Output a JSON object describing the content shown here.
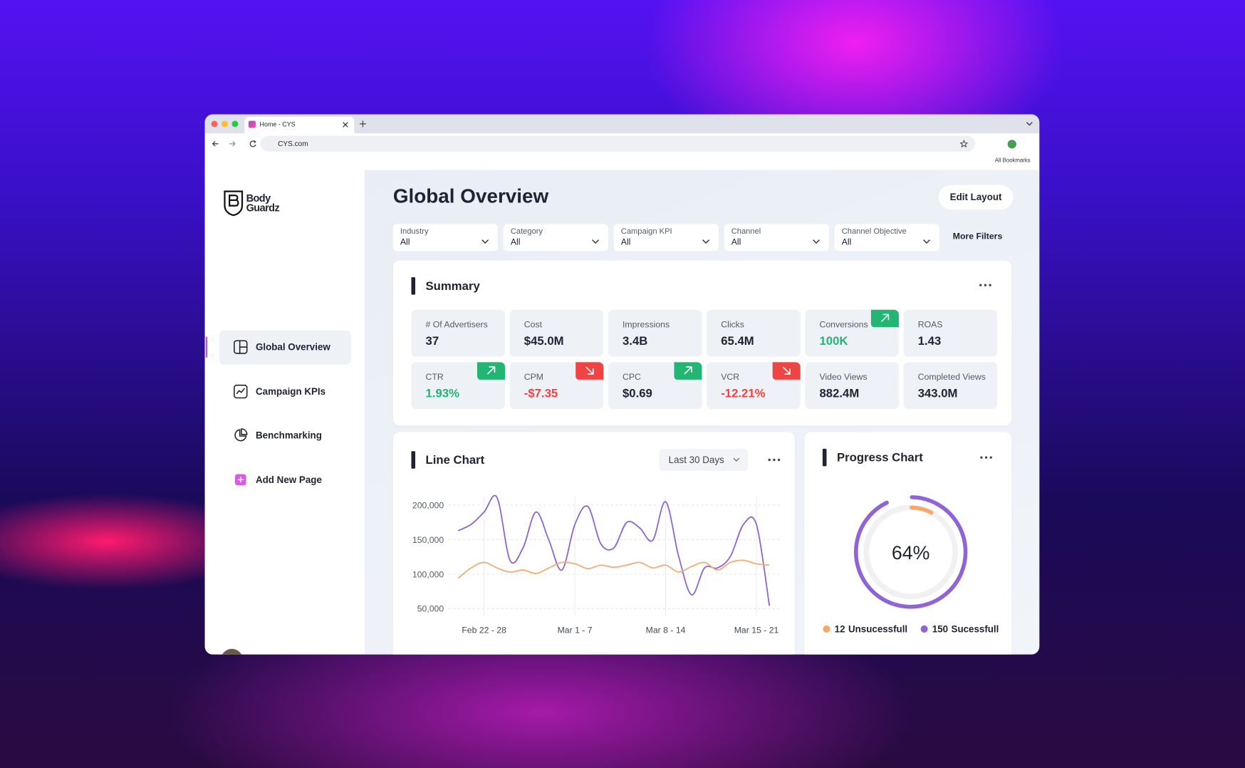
{
  "browser": {
    "tab_title": "Home - CYS",
    "url": "CYS.com",
    "bookmarks": "All Bookmarks"
  },
  "sidebar": {
    "logo": [
      "Body",
      "Guardz"
    ],
    "nav": [
      {
        "label": "Global Overview",
        "active": true
      },
      {
        "label": "Campaign KPIs"
      },
      {
        "label": "Benchmarking"
      },
      {
        "label": "Add New Page"
      }
    ]
  },
  "header": {
    "title": "Global Overview",
    "button": "Edit Layout"
  },
  "filters": [
    {
      "label": "Industry",
      "value": "All"
    },
    {
      "label": "Category",
      "value": "All"
    },
    {
      "label": "Campaign KPI",
      "value": "All"
    },
    {
      "label": "Channel",
      "value": "All"
    },
    {
      "label": "Channel Objective",
      "value": "All"
    }
  ],
  "more_filters": "More Filters",
  "summary": {
    "title": "Summary",
    "metrics": [
      {
        "label": "# Of Advertisers",
        "value": "37"
      },
      {
        "label": "Cost",
        "value": "$45.0M"
      },
      {
        "label": "Impressions",
        "value": "3.4B"
      },
      {
        "label": "Clicks",
        "value": "65.4M"
      },
      {
        "label": "Conversions",
        "value": "100K",
        "trend": "up",
        "value_color": "#22b573"
      },
      {
        "label": "ROAS",
        "value": "1.43"
      },
      {
        "label": "CTR",
        "value": "1.93%",
        "trend": "up",
        "value_color": "#22b573"
      },
      {
        "label": "CPM",
        "value": "-$7.35",
        "trend": "down",
        "value_color": "#ef4444"
      },
      {
        "label": "CPC",
        "value": "$0.69",
        "trend": "up"
      },
      {
        "label": "VCR",
        "value": "-12.21%",
        "trend": "down",
        "value_color": "#ef4444"
      },
      {
        "label": "Video Views",
        "value": "882.4M"
      },
      {
        "label": "Completed Views",
        "value": "343.0M"
      }
    ]
  },
  "chart_data": [
    {
      "type": "line",
      "title": "Line Chart",
      "range": "Last 30 Days",
      "categories": [
        null,
        null,
        "Feb 22 - 28",
        null,
        null,
        null,
        null,
        null,
        null,
        "Mar 1 - 7",
        null,
        null,
        null,
        null,
        null,
        null,
        "Mar 8 - 14",
        null,
        null,
        null,
        null,
        null,
        null,
        "Mar 15 - 21",
        null
      ],
      "series": [
        {
          "color": "#8e62d0",
          "values": [
            163000,
            172000,
            190000,
            211000,
            120000,
            138000,
            190000,
            149000,
            106000,
            172000,
            198000,
            144000,
            138000,
            175000,
            167000,
            149000,
            205000,
            126000,
            70000,
            109000,
            109000,
            126000,
            172000,
            172000,
            54000
          ]
        },
        {
          "color": "#f2ab74",
          "values": [
            94000,
            109000,
            117000,
            109000,
            103000,
            106000,
            101000,
            109000,
            117000,
            115000,
            108000,
            113000,
            110000,
            113000,
            117000,
            109000,
            113000,
            103000,
            111000,
            117000,
            106000,
            117000,
            120000,
            115000,
            113000
          ]
        }
      ],
      "ylim": [
        40000,
        215000
      ],
      "yticks": [
        {
          "value": 50000,
          "label": "50,000"
        },
        {
          "value": 100000,
          "label": "100,000"
        },
        {
          "value": 150000,
          "label": "150,000"
        },
        {
          "value": 200000,
          "label": "200,000"
        }
      ],
      "grid": true
    },
    {
      "type": "progress",
      "title": "Progress Chart",
      "value": 64,
      "value_label": "64%",
      "series": [
        {
          "name": "Unsucessfull",
          "color": "#f5a86a",
          "value": 12
        },
        {
          "name": "Sucessfull",
          "color": "#9063d6",
          "value": 150
        }
      ]
    }
  ]
}
